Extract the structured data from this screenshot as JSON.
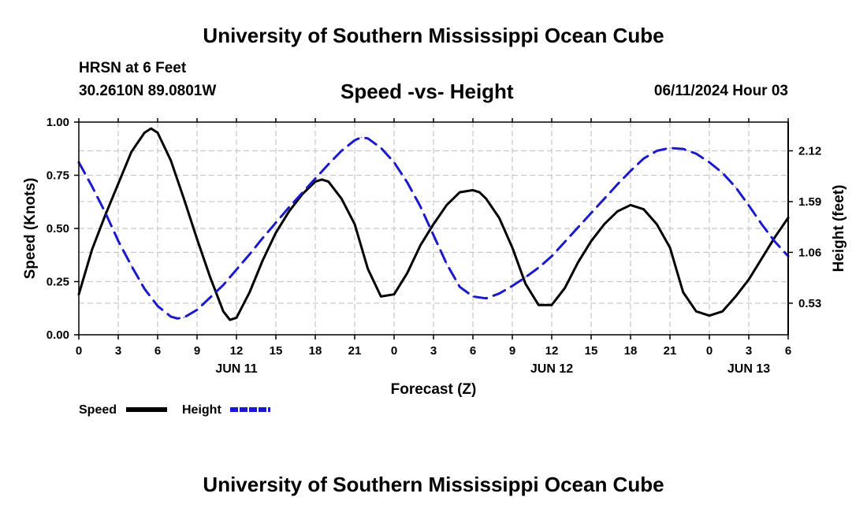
{
  "header": {
    "title": "University of Southern Mississippi Ocean Cube",
    "station": "HRSN at 6 Feet",
    "coords": "30.2610N  89.0801W",
    "chart_title": "Speed -vs- Height",
    "datetime": "06/11/2024 Hour 03"
  },
  "footer": {
    "title": "University of Southern Mississippi Ocean Cube"
  },
  "colors": {
    "speed": "#000000",
    "height": "#1a1acc",
    "grid": "#c8c8c8"
  },
  "chart_data": {
    "type": "line",
    "title": "Speed -vs- Height",
    "xlabel": "Forecast (Z)",
    "ylabel": "Speed (Knots)",
    "y2label": "Height (feet)",
    "xlim": [
      0,
      54
    ],
    "ylim": [
      0,
      1
    ],
    "y2lim": [
      0.2,
      2.42
    ],
    "x_ticks": [
      0,
      3,
      6,
      9,
      12,
      15,
      18,
      21,
      24,
      27,
      30,
      33,
      36,
      39,
      42,
      45,
      48,
      51,
      54
    ],
    "x_tick_labels": [
      "0",
      "3",
      "6",
      "9",
      "12",
      "15",
      "18",
      "21",
      "0",
      "3",
      "6",
      "9",
      "12",
      "15",
      "18",
      "21",
      "0",
      "3",
      "6"
    ],
    "date_labels": [
      {
        "x": 12,
        "label": "JUN 11"
      },
      {
        "x": 36,
        "label": "JUN 12"
      },
      {
        "x": 51,
        "label": "JUN 13"
      }
    ],
    "y_ticks": [
      0,
      0.25,
      0.5,
      0.75,
      1.0
    ],
    "y_tick_labels": [
      "0.00",
      "0.25",
      "0.50",
      "0.75",
      "1.00"
    ],
    "y2_ticks": [
      0.53,
      1.06,
      1.59,
      2.12
    ],
    "y2_tick_labels": [
      "0.53",
      "1.06",
      "1.59",
      "2.12"
    ],
    "grid": true,
    "legend": [
      {
        "name": "Speed",
        "style": "solid"
      },
      {
        "name": "Height",
        "style": "dashed"
      }
    ],
    "series": [
      {
        "name": "Speed",
        "axis": "left",
        "x": [
          0,
          1,
          2,
          3,
          4,
          5,
          5.5,
          6,
          7,
          8,
          9,
          10,
          11,
          11.5,
          12,
          13,
          14,
          15,
          16,
          17,
          18,
          18.5,
          19,
          20,
          21,
          22,
          23,
          24,
          25,
          26,
          27,
          28,
          29,
          30,
          30.5,
          31,
          32,
          33,
          34,
          35,
          36,
          37,
          38,
          39,
          40,
          41,
          42,
          43,
          44,
          45,
          46,
          47,
          48,
          49,
          50,
          51,
          52,
          53,
          54
        ],
        "values": [
          0.19,
          0.4,
          0.56,
          0.71,
          0.86,
          0.95,
          0.97,
          0.95,
          0.82,
          0.64,
          0.45,
          0.27,
          0.11,
          0.07,
          0.08,
          0.2,
          0.35,
          0.48,
          0.58,
          0.66,
          0.72,
          0.73,
          0.72,
          0.64,
          0.52,
          0.31,
          0.18,
          0.19,
          0.29,
          0.42,
          0.52,
          0.61,
          0.67,
          0.68,
          0.67,
          0.64,
          0.55,
          0.41,
          0.24,
          0.14,
          0.14,
          0.22,
          0.34,
          0.44,
          0.52,
          0.58,
          0.61,
          0.59,
          0.52,
          0.41,
          0.2,
          0.11,
          0.09,
          0.11,
          0.18,
          0.26,
          0.36,
          0.46,
          0.55
        ]
      },
      {
        "name": "Height",
        "axis": "right",
        "x": [
          0,
          1,
          2,
          3,
          4,
          5,
          6,
          7,
          7.5,
          8,
          9,
          10,
          11,
          12,
          13,
          14,
          15,
          16,
          17,
          18,
          19,
          20,
          21,
          21.5,
          22,
          23,
          24,
          25,
          26,
          27,
          28,
          29,
          30,
          31,
          32,
          33,
          34,
          35,
          36,
          37,
          38,
          39,
          40,
          41,
          42,
          43,
          44,
          45,
          46,
          47,
          48,
          49,
          50,
          51,
          52,
          53,
          54
        ],
        "values": [
          2.0,
          1.75,
          1.48,
          1.18,
          0.92,
          0.68,
          0.5,
          0.39,
          0.37,
          0.38,
          0.46,
          0.59,
          0.72,
          0.88,
          1.04,
          1.21,
          1.37,
          1.53,
          1.68,
          1.83,
          1.98,
          2.12,
          2.23,
          2.26,
          2.25,
          2.15,
          2.0,
          1.79,
          1.54,
          1.24,
          0.94,
          0.7,
          0.6,
          0.58,
          0.63,
          0.71,
          0.8,
          0.9,
          1.02,
          1.17,
          1.32,
          1.47,
          1.62,
          1.77,
          1.91,
          2.04,
          2.12,
          2.15,
          2.14,
          2.09,
          2.0,
          1.89,
          1.74,
          1.55,
          1.35,
          1.17,
          1.02
        ]
      }
    ]
  }
}
